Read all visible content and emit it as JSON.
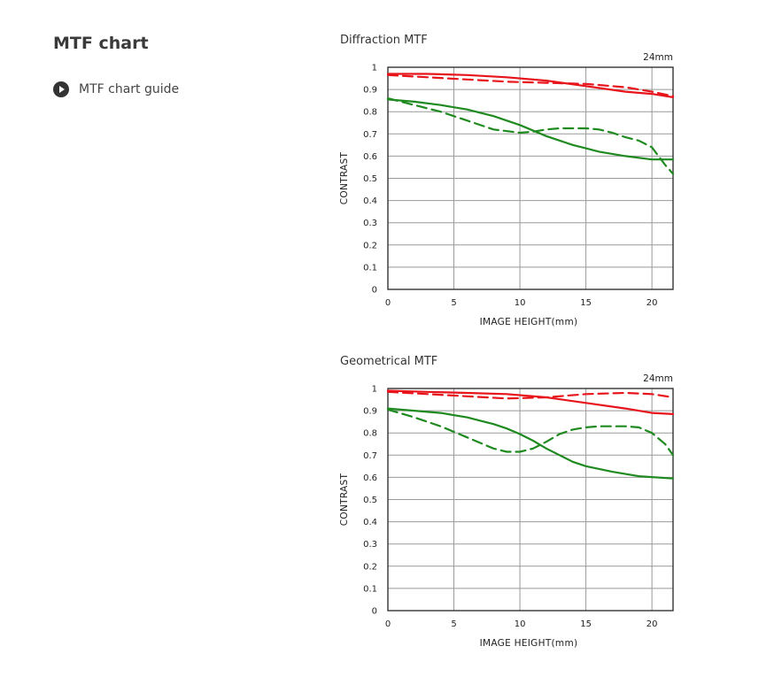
{
  "page": {
    "title": "MTF chart",
    "guide_link": {
      "label": "MTF chart guide",
      "icon": "play-circle-icon"
    }
  },
  "colors": {
    "red": "#e8141b",
    "green": "#1f8a1f",
    "grid": "#999999",
    "axis": "#333333"
  },
  "chart_data": [
    {
      "type": "line",
      "title": "Diffraction MTF",
      "annotation": "24mm",
      "xlabel": "IMAGE HEIGHT(mm)",
      "ylabel": "CONTRAST",
      "xlim": [
        0,
        21.6
      ],
      "ylim": [
        0,
        1
      ],
      "xticks": [
        0,
        5,
        10,
        15,
        20
      ],
      "yticks": [
        0,
        0.1,
        0.2,
        0.3,
        0.4,
        0.5,
        0.6,
        0.7,
        0.8,
        0.9,
        1
      ],
      "ytick_labels": [
        "0",
        "0.1",
        "0.2",
        "0.3",
        "0.4",
        "0.5",
        "0.6",
        "0.7",
        "0.8",
        "0.9",
        "1"
      ],
      "grid": true,
      "series": [
        {
          "color": "red",
          "dash": false,
          "x": [
            0,
            3,
            6,
            9,
            12,
            15,
            18,
            20,
            21.6
          ],
          "y": [
            0.97,
            0.97,
            0.965,
            0.955,
            0.94,
            0.915,
            0.89,
            0.88,
            0.865
          ]
        },
        {
          "color": "red",
          "dash": true,
          "x": [
            0,
            3,
            6,
            9,
            12,
            15,
            18,
            20,
            21.6
          ],
          "y": [
            0.965,
            0.955,
            0.945,
            0.935,
            0.93,
            0.925,
            0.91,
            0.89,
            0.87
          ]
        },
        {
          "color": "green",
          "dash": false,
          "x": [
            0,
            2,
            4,
            6,
            8,
            10,
            12,
            13,
            14,
            15,
            16,
            18,
            20,
            21.6
          ],
          "y": [
            0.855,
            0.845,
            0.83,
            0.81,
            0.78,
            0.74,
            0.69,
            0.67,
            0.65,
            0.635,
            0.62,
            0.6,
            0.585,
            0.585
          ]
        },
        {
          "color": "green",
          "dash": true,
          "x": [
            0,
            2,
            4,
            6,
            8,
            10,
            11,
            12,
            13,
            14,
            15,
            16,
            17,
            18,
            19,
            20,
            20.5,
            21,
            21.6
          ],
          "y": [
            0.86,
            0.83,
            0.8,
            0.76,
            0.72,
            0.705,
            0.71,
            0.72,
            0.725,
            0.725,
            0.725,
            0.72,
            0.705,
            0.685,
            0.67,
            0.64,
            0.6,
            0.56,
            0.52
          ]
        }
      ]
    },
    {
      "type": "line",
      "title": "Geometrical MTF",
      "annotation": "24mm",
      "xlabel": "IMAGE HEIGHT(mm)",
      "ylabel": "CONTRAST",
      "xlim": [
        0,
        21.6
      ],
      "ylim": [
        0,
        1
      ],
      "xticks": [
        0,
        5,
        10,
        15,
        20
      ],
      "yticks": [
        0,
        0.1,
        0.2,
        0.3,
        0.4,
        0.5,
        0.6,
        0.7,
        0.8,
        0.9,
        1
      ],
      "ytick_labels": [
        "0",
        "0.1",
        "0.2",
        "0.3",
        "0.4",
        "0.5",
        "0.6",
        "0.7",
        "0.8",
        "0.9",
        "1"
      ],
      "grid": true,
      "series": [
        {
          "color": "red",
          "dash": false,
          "x": [
            0,
            3,
            6,
            9,
            12,
            15,
            18,
            20,
            21.6
          ],
          "y": [
            0.99,
            0.985,
            0.98,
            0.975,
            0.96,
            0.935,
            0.91,
            0.89,
            0.885
          ]
        },
        {
          "color": "red",
          "dash": true,
          "x": [
            0,
            3,
            6,
            9,
            12,
            15,
            18,
            20,
            21.6
          ],
          "y": [
            0.985,
            0.975,
            0.965,
            0.955,
            0.96,
            0.975,
            0.98,
            0.975,
            0.96
          ]
        },
        {
          "color": "green",
          "dash": false,
          "x": [
            0,
            2,
            4,
            6,
            7,
            8,
            9,
            10,
            11,
            12,
            13,
            14,
            15,
            17,
            19,
            21.6
          ],
          "y": [
            0.91,
            0.9,
            0.89,
            0.87,
            0.855,
            0.84,
            0.82,
            0.795,
            0.765,
            0.73,
            0.7,
            0.67,
            0.65,
            0.625,
            0.605,
            0.595
          ]
        },
        {
          "color": "green",
          "dash": true,
          "x": [
            0,
            2,
            4,
            6,
            8,
            9,
            10,
            11,
            12,
            13,
            14,
            15,
            16,
            17,
            18,
            19,
            20,
            21,
            21.6
          ],
          "y": [
            0.905,
            0.87,
            0.83,
            0.78,
            0.73,
            0.715,
            0.715,
            0.73,
            0.76,
            0.795,
            0.815,
            0.825,
            0.83,
            0.83,
            0.83,
            0.825,
            0.8,
            0.75,
            0.7
          ]
        }
      ]
    }
  ]
}
